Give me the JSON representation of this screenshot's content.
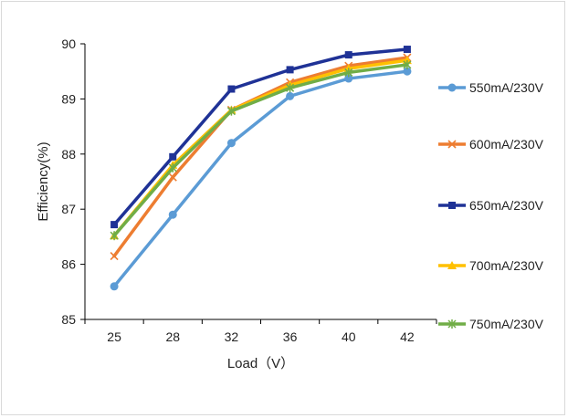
{
  "chart_data": {
    "type": "line",
    "title": "",
    "xlabel": "Load（V）",
    "ylabel": "Efficiency(%)",
    "categories": [
      "25",
      "28",
      "32",
      "36",
      "40",
      "42"
    ],
    "ylim": [
      85,
      90
    ],
    "yticks": [
      85,
      86,
      87,
      88,
      89,
      90
    ],
    "grid": false,
    "legend_position": "right",
    "series": [
      {
        "name": "550mA/230V",
        "color": "#5B9BD5",
        "marker": "circle",
        "values": [
          85.6,
          86.9,
          88.2,
          89.05,
          89.37,
          89.5
        ]
      },
      {
        "name": "600mA/230V",
        "color": "#ED7D31",
        "marker": "x",
        "values": [
          86.15,
          87.58,
          88.8,
          89.3,
          89.6,
          89.75
        ]
      },
      {
        "name": "650mA/230V",
        "color": "#1F3296",
        "marker": "square",
        "values": [
          86.72,
          87.95,
          89.18,
          89.53,
          89.8,
          89.9
        ]
      },
      {
        "name": "700mA/230V",
        "color": "#FFC000",
        "marker": "triangle",
        "values": [
          86.52,
          87.8,
          88.8,
          89.25,
          89.55,
          89.7
        ]
      },
      {
        "name": "750mA/230V",
        "color": "#70AD47",
        "marker": "asterisk",
        "values": [
          86.52,
          87.75,
          88.78,
          89.2,
          89.48,
          89.62
        ]
      }
    ]
  }
}
